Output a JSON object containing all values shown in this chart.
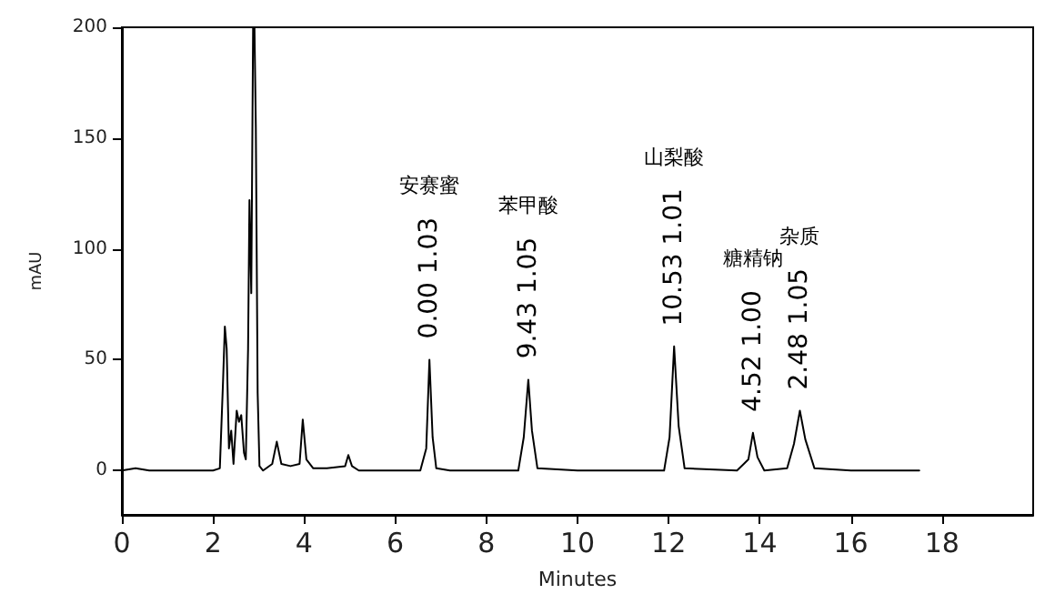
{
  "chart_data": {
    "type": "line",
    "xlabel": "Minutes",
    "ylabel": "mAU",
    "xlim": [
      0,
      20
    ],
    "xticks": [
      0,
      2,
      4,
      6,
      8,
      10,
      12,
      14,
      16,
      18
    ],
    "ylim": [
      -20,
      200
    ],
    "yticks": [
      0,
      50,
      100,
      150,
      200
    ],
    "grid": false,
    "marker": "none",
    "line_style": "solid",
    "series": [
      {
        "color": "#000000",
        "x": [
          0,
          0.3,
          0.6,
          1.0,
          1.5,
          2.0,
          2.15,
          2.22,
          2.26,
          2.3,
          2.35,
          2.4,
          2.45,
          2.52,
          2.57,
          2.62,
          2.68,
          2.72,
          2.77,
          2.8,
          2.84,
          2.88,
          2.91,
          2.94,
          2.98,
          3.02,
          3.1,
          3.3,
          3.4,
          3.5,
          3.7,
          3.9,
          3.97,
          4.05,
          4.2,
          4.5,
          4.9,
          4.97,
          5.05,
          5.2,
          6.0,
          6.55,
          6.68,
          6.75,
          6.82,
          6.9,
          7.2,
          8.0,
          8.7,
          8.82,
          8.92,
          9.0,
          9.12,
          10.0,
          11.9,
          12.02,
          12.12,
          12.22,
          12.35,
          13.5,
          13.75,
          13.85,
          13.95,
          14.1,
          14.6,
          14.75,
          14.88,
          15.0,
          15.2,
          16.0,
          17.5
        ],
        "values": [
          0,
          1,
          0,
          0,
          0,
          0,
          1,
          40,
          65,
          55,
          10,
          18,
          3,
          27,
          22,
          25,
          8,
          5,
          55,
          122,
          80,
          200,
          200,
          155,
          35,
          2,
          0,
          3,
          13,
          3,
          2,
          3,
          23,
          5,
          1,
          1,
          2,
          7,
          2,
          0,
          0,
          0,
          10,
          50,
          15,
          1,
          0,
          0,
          0,
          15,
          41,
          18,
          1,
          0,
          0,
          15,
          56,
          20,
          1,
          0,
          5,
          17,
          6,
          0,
          1,
          12,
          27,
          14,
          1,
          0,
          0
        ]
      }
    ],
    "annotations": [
      "安赛蜜",
      {
        "text": "0.00 1.03",
        "x": 6.75,
        "y": 50
      },
      "苯甲酸",
      {
        "text": "9.43 1.05",
        "x": 8.92,
        "y": 41
      },
      "山梨酸",
      {
        "text": "10.53 1.01",
        "x": 12.12,
        "y": 56
      },
      "糖精钠",
      {
        "text": "4.52 1.00",
        "x": 13.85,
        "y": 17
      },
      "杂质",
      {
        "text": "2.48 1.05",
        "x": 14.88,
        "y": 27
      }
    ]
  }
}
